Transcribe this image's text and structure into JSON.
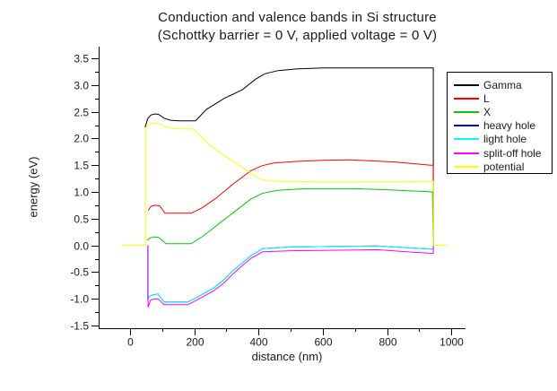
{
  "title": {
    "line1": "Conduction and valence bands in Si structure",
    "line2": "(Schottky barrier = 0 V, applied voltage = 0 V)"
  },
  "axes": {
    "x": {
      "label": "distance (nm)",
      "major_ticks": [
        {
          "value": 0,
          "label": "0"
        },
        {
          "value": 200,
          "label": "200"
        },
        {
          "value": 400,
          "label": "400"
        },
        {
          "value": 600,
          "label": "600"
        },
        {
          "value": 800,
          "label": "800"
        },
        {
          "value": 1000,
          "label": "1000"
        }
      ],
      "minor_ticks": [
        100,
        300,
        500,
        700,
        900
      ]
    },
    "y": {
      "label": "energy (eV)",
      "major_ticks": [
        {
          "value": 3.5,
          "label": "3.5"
        },
        {
          "value": 3.0,
          "label": "3.0"
        },
        {
          "value": 2.5,
          "label": "2.5"
        },
        {
          "value": 2.0,
          "label": "2.0"
        },
        {
          "value": 1.5,
          "label": "1.5"
        },
        {
          "value": 1.0,
          "label": "1.0"
        },
        {
          "value": 0.5,
          "label": "0.5"
        },
        {
          "value": 0.0,
          "label": "0.0"
        },
        {
          "value": -0.5,
          "label": "-0.5"
        },
        {
          "value": -1.0,
          "label": "-1.0"
        },
        {
          "value": -1.5,
          "label": "-1.5"
        }
      ],
      "minor_ticks": [
        3.25,
        2.75,
        2.25,
        1.75,
        1.25,
        0.75,
        0.25,
        -0.25,
        -0.75,
        -1.25
      ]
    }
  },
  "chart_data": {
    "type": "line",
    "title": "Conduction and valence bands in Si structure (Schottky barrier = 0 V, applied voltage = 0 V)",
    "xlabel": "distance (nm)",
    "ylabel": "energy (eV)",
    "xlim": [
      -98,
      1045
    ],
    "ylim": [
      -1.5,
      3.5
    ],
    "grid": false,
    "legend_position": "right",
    "series": [
      {
        "name": "Gamma",
        "color": "#000000",
        "points": [
          [
            47,
            2.21
          ],
          [
            55,
            2.37
          ],
          [
            65,
            2.44
          ],
          [
            78,
            2.46
          ],
          [
            89,
            2.45
          ],
          [
            106,
            2.38
          ],
          [
            126,
            2.34
          ],
          [
            154,
            2.33
          ],
          [
            204,
            2.33
          ],
          [
            237,
            2.54
          ],
          [
            293,
            2.75
          ],
          [
            349,
            2.91
          ],
          [
            391,
            3.11
          ],
          [
            419,
            3.21
          ],
          [
            461,
            3.27
          ],
          [
            517,
            3.3
          ],
          [
            600,
            3.32
          ],
          [
            930,
            3.32
          ],
          [
            944,
            3.32
          ],
          [
            944,
            0
          ]
        ]
      },
      {
        "name": "L",
        "color": "#ff0000",
        "points": [
          [
            56,
            0.65
          ],
          [
            65,
            0.73
          ],
          [
            78,
            0.75
          ],
          [
            92,
            0.74
          ],
          [
            109,
            0.6
          ],
          [
            190,
            0.6
          ],
          [
            223,
            0.7
          ],
          [
            265,
            0.87
          ],
          [
            321,
            1.15
          ],
          [
            377,
            1.4
          ],
          [
            411,
            1.49
          ],
          [
            447,
            1.54
          ],
          [
            517,
            1.57
          ],
          [
            600,
            1.59
          ],
          [
            684,
            1.6
          ],
          [
            824,
            1.56
          ],
          [
            936,
            1.5
          ],
          [
            944,
            1.5
          ],
          [
            944,
            0
          ]
        ]
      },
      {
        "name": "X",
        "color": "#00cc00",
        "points": [
          [
            53,
            0.09
          ],
          [
            62,
            0.14
          ],
          [
            75,
            0.16
          ],
          [
            89,
            0.15
          ],
          [
            112,
            0.03
          ],
          [
            190,
            0.03
          ],
          [
            229,
            0.18
          ],
          [
            265,
            0.35
          ],
          [
            321,
            0.61
          ],
          [
            377,
            0.87
          ],
          [
            411,
            0.97
          ],
          [
            433,
            1.0
          ],
          [
            461,
            1.03
          ],
          [
            545,
            1.06
          ],
          [
            700,
            1.06
          ],
          [
            796,
            1.04
          ],
          [
            908,
            1.01
          ],
          [
            941,
            1.0
          ],
          [
            944,
            0
          ]
        ]
      },
      {
        "name": "heavy hole",
        "color": "#0000ff",
        "points": [
          [
            55,
            0
          ],
          [
            55,
            -1.0
          ],
          [
            62,
            -0.95
          ],
          [
            70,
            -0.93
          ],
          [
            87,
            -0.91
          ],
          [
            106,
            -1.06
          ],
          [
            180,
            -1.06
          ],
          [
            215,
            -0.95
          ],
          [
            260,
            -0.8
          ],
          [
            293,
            -0.64
          ],
          [
            321,
            -0.47
          ],
          [
            349,
            -0.33
          ],
          [
            377,
            -0.19
          ],
          [
            413,
            -0.06
          ],
          [
            500,
            -0.03
          ],
          [
            650,
            -0.02
          ],
          [
            768,
            -0.01
          ],
          [
            880,
            -0.05
          ],
          [
            941,
            -0.07
          ],
          [
            944,
            -0.07
          ],
          [
            944,
            0
          ]
        ]
      },
      {
        "name": "light hole",
        "color": "#00ffff",
        "points": [
          [
            55,
            0
          ],
          [
            55,
            -1.0
          ],
          [
            62,
            -0.95
          ],
          [
            70,
            -0.93
          ],
          [
            87,
            -0.91
          ],
          [
            106,
            -1.06
          ],
          [
            180,
            -1.06
          ],
          [
            215,
            -0.95
          ],
          [
            260,
            -0.8
          ],
          [
            293,
            -0.64
          ],
          [
            321,
            -0.47
          ],
          [
            349,
            -0.33
          ],
          [
            377,
            -0.19
          ],
          [
            413,
            -0.06
          ],
          [
            500,
            -0.03
          ],
          [
            650,
            -0.02
          ],
          [
            768,
            -0.01
          ],
          [
            880,
            -0.05
          ],
          [
            941,
            -0.07
          ],
          [
            944,
            -0.07
          ],
          [
            944,
            0
          ]
        ]
      },
      {
        "name": "split-off hole",
        "color": "#ff00ff",
        "points": [
          [
            56,
            0
          ],
          [
            56,
            -1.16
          ],
          [
            63,
            -1.03
          ],
          [
            70,
            -1.01
          ],
          [
            87,
            -1.0
          ],
          [
            106,
            -1.11
          ],
          [
            180,
            -1.11
          ],
          [
            215,
            -1.0
          ],
          [
            260,
            -0.85
          ],
          [
            293,
            -0.7
          ],
          [
            321,
            -0.53
          ],
          [
            349,
            -0.38
          ],
          [
            377,
            -0.24
          ],
          [
            413,
            -0.12
          ],
          [
            500,
            -0.1
          ],
          [
            650,
            -0.09
          ],
          [
            768,
            -0.08
          ],
          [
            880,
            -0.13
          ],
          [
            941,
            -0.15
          ],
          [
            944,
            -0.15
          ],
          [
            944,
            0
          ]
        ]
      },
      {
        "name": "potential",
        "color": "#ffff00",
        "points": [
          [
            -28,
            0
          ],
          [
            48,
            0
          ],
          [
            48,
            2.19
          ],
          [
            55,
            2.25
          ],
          [
            65,
            2.28
          ],
          [
            78,
            2.29
          ],
          [
            89,
            2.28
          ],
          [
            106,
            2.23
          ],
          [
            130,
            2.19
          ],
          [
            160,
            2.18
          ],
          [
            196,
            2.18
          ],
          [
            251,
            1.86
          ],
          [
            321,
            1.57
          ],
          [
            377,
            1.35
          ],
          [
            405,
            1.24
          ],
          [
            433,
            1.21
          ],
          [
            461,
            1.2
          ],
          [
            600,
            1.19
          ],
          [
            684,
            1.19
          ],
          [
            840,
            1.19
          ],
          [
            927,
            1.2
          ],
          [
            944,
            1.2
          ],
          [
            944,
            0
          ],
          [
            986,
            0
          ]
        ]
      }
    ]
  }
}
